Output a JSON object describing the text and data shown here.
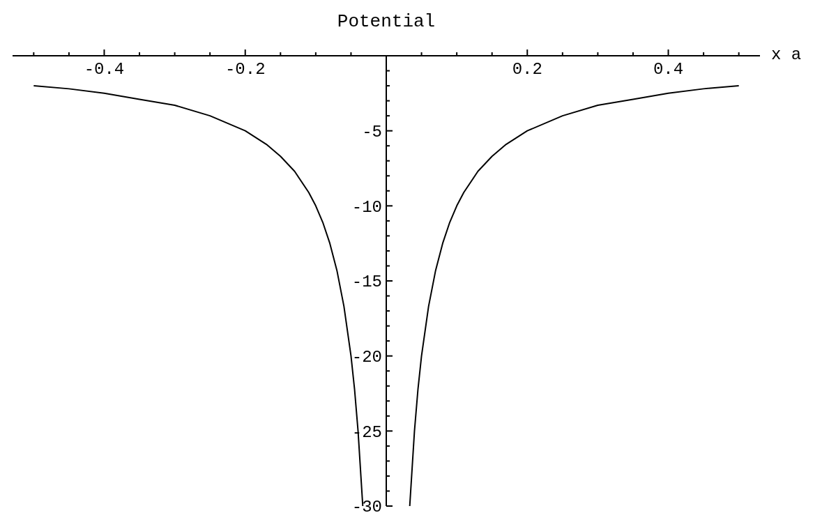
{
  "chart_data": {
    "type": "line",
    "title": "Potential",
    "xlabel": "x a",
    "x": [
      -0.5,
      -0.45,
      -0.4,
      -0.35,
      -0.3,
      -0.25,
      -0.2,
      -0.17,
      -0.15,
      -0.13,
      -0.11,
      -0.1,
      -0.09,
      -0.08,
      -0.07,
      -0.06,
      -0.05,
      -0.045,
      -0.04,
      -0.0333,
      0,
      0.0333,
      0.04,
      0.045,
      0.05,
      0.06,
      0.07,
      0.08,
      0.09,
      0.1,
      0.11,
      0.13,
      0.15,
      0.17,
      0.2,
      0.25,
      0.3,
      0.35,
      0.4,
      0.45,
      0.5
    ],
    "series": [
      {
        "color": "#000000",
        "values": [
          -2,
          -2.2,
          -2.5,
          -2.9,
          -3.3,
          -4,
          -5,
          -5.9,
          -6.7,
          -7.7,
          -9.1,
          -10,
          -11.1,
          -12.5,
          -14.3,
          -16.7,
          -20,
          -22.2,
          -25,
          -30,
          null,
          -30,
          -25,
          -22.2,
          -20,
          -16.7,
          -14.3,
          -12.5,
          -11.1,
          -10,
          -9.1,
          -7.7,
          -6.7,
          -5.9,
          -5,
          -4,
          -3.3,
          -2.9,
          -2.5,
          -2.2,
          -2
        ]
      }
    ],
    "xlim": [
      -0.53,
      0.53
    ],
    "ylim": [
      -30,
      0
    ],
    "xticks": [
      {
        "value": -0.5,
        "label": null
      },
      {
        "value": -0.45,
        "label": null
      },
      {
        "value": -0.4,
        "label": "-0.4"
      },
      {
        "value": -0.35,
        "label": null
      },
      {
        "value": -0.3,
        "label": null
      },
      {
        "value": -0.25,
        "label": null
      },
      {
        "value": -0.2,
        "label": "-0.2"
      },
      {
        "value": -0.15,
        "label": null
      },
      {
        "value": -0.1,
        "label": null
      },
      {
        "value": -0.05,
        "label": null
      },
      {
        "value": 0.05,
        "label": null
      },
      {
        "value": 0.1,
        "label": null
      },
      {
        "value": 0.15,
        "label": null
      },
      {
        "value": 0.2,
        "label": "0.2"
      },
      {
        "value": 0.25,
        "label": null
      },
      {
        "value": 0.3,
        "label": null
      },
      {
        "value": 0.35,
        "label": null
      },
      {
        "value": 0.4,
        "label": "0.4"
      },
      {
        "value": 0.45,
        "label": null
      },
      {
        "value": 0.5,
        "label": null
      }
    ],
    "yticks": [
      {
        "value": -1,
        "label": null
      },
      {
        "value": -2,
        "label": null
      },
      {
        "value": -3,
        "label": null
      },
      {
        "value": -4,
        "label": null
      },
      -5,
      {
        "value": -6,
        "label": null
      },
      {
        "value": -7,
        "label": null
      },
      {
        "value": -8,
        "label": null
      },
      {
        "value": -9,
        "label": null
      },
      -10,
      {
        "value": -11,
        "label": null
      },
      {
        "value": -12,
        "label": null
      },
      {
        "value": -13,
        "label": null
      },
      {
        "value": -14,
        "label": null
      },
      -15,
      {
        "value": -16,
        "label": null
      },
      {
        "value": -17,
        "label": null
      },
      {
        "value": -18,
        "label": null
      },
      {
        "value": -19,
        "label": null
      },
      -20,
      {
        "value": -21,
        "label": null
      },
      {
        "value": -22,
        "label": null
      },
      {
        "value": -23,
        "label": null
      },
      {
        "value": -24,
        "label": null
      },
      -25,
      {
        "value": -26,
        "label": null
      },
      {
        "value": -27,
        "label": null
      },
      {
        "value": -28,
        "label": null
      },
      {
        "value": -29,
        "label": null
      },
      -30
    ],
    "marker": "none",
    "line_style": "solid"
  }
}
